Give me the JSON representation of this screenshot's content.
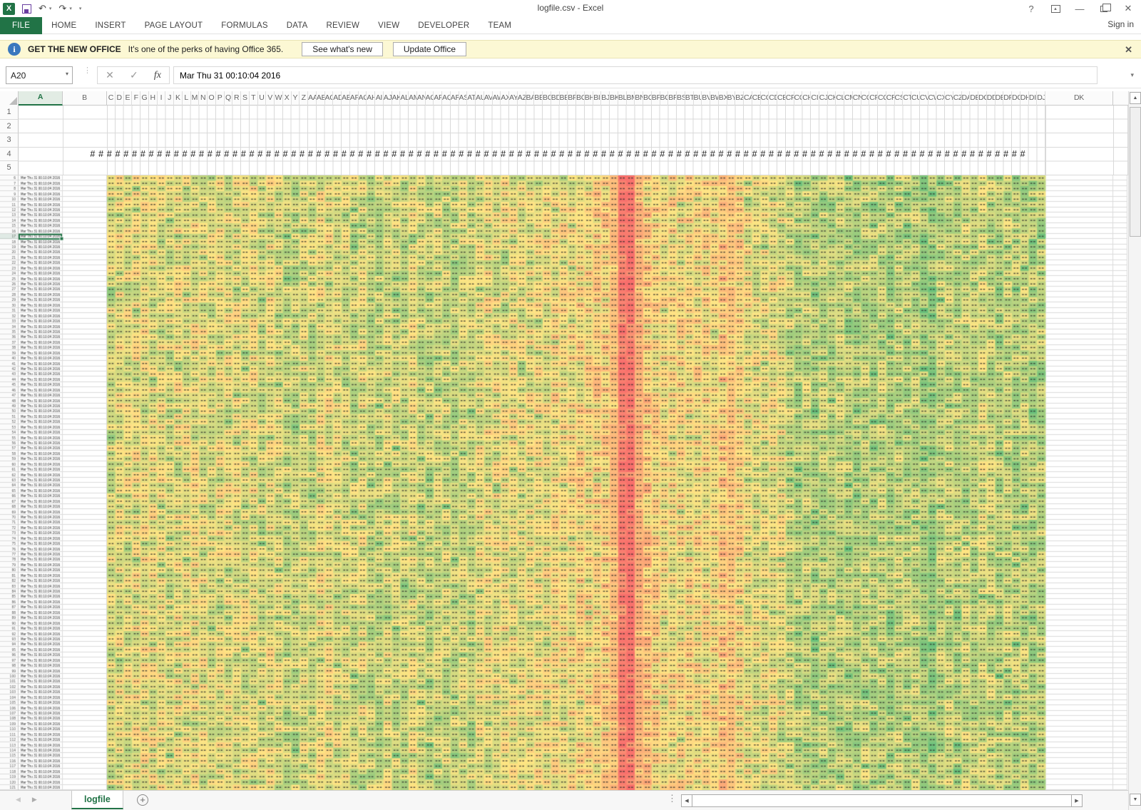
{
  "window": {
    "title": "logfile.csv - Excel",
    "sign_in": "Sign in"
  },
  "ribbon": {
    "active_tab": "FILE",
    "tabs": [
      "FILE",
      "HOME",
      "INSERT",
      "PAGE LAYOUT",
      "FORMULAS",
      "DATA",
      "REVIEW",
      "VIEW",
      "DEVELOPER",
      "TEAM"
    ]
  },
  "notification": {
    "title": "GET THE NEW OFFICE",
    "message": "It's one of the perks of having Office 365.",
    "buttons": [
      "See what's new",
      "Update Office"
    ]
  },
  "formula_bar": {
    "name_box": "A20",
    "fx_label": "fx",
    "value": "Mar Thu 31 00:10:04 2016"
  },
  "sheet": {
    "wide_col_headers": [
      "A",
      "B"
    ],
    "narrow_col_headers": [
      "C",
      "D",
      "E",
      "F",
      "G",
      "H",
      "I",
      "J",
      "K",
      "L",
      "M",
      "N",
      "O",
      "P",
      "Q",
      "R",
      "S",
      "T",
      "U",
      "V",
      "W",
      "X",
      "Y",
      "Z",
      "AA",
      "AB",
      "AC",
      "AD",
      "AE",
      "AF",
      "AG",
      "AH",
      "AI",
      "AJ",
      "AK",
      "AL",
      "AM",
      "AN",
      "AO",
      "AP",
      "AQ",
      "AR",
      "AS",
      "AT",
      "AU",
      "AV",
      "AW",
      "AX",
      "AY",
      "AZ",
      "BA",
      "BB",
      "BC",
      "BD",
      "BE",
      "BF",
      "BG",
      "BH",
      "BI",
      "BJ",
      "BK",
      "BL",
      "BM",
      "BN",
      "BO",
      "BP",
      "BQ",
      "BR",
      "BS",
      "BT",
      "BU",
      "BV",
      "BW",
      "BX",
      "BY",
      "BZ",
      "CA",
      "CB",
      "CC",
      "CD",
      "CE",
      "CF",
      "CG",
      "CH",
      "CI",
      "CJ",
      "CK",
      "CL",
      "CM",
      "CN",
      "CO",
      "CP",
      "CQ",
      "CR",
      "CS",
      "CT",
      "CU",
      "CV",
      "CW",
      "CX",
      "CY",
      "CZ",
      "DA",
      "DB",
      "DC",
      "DD",
      "DE",
      "DF",
      "DG",
      "DH",
      "DI",
      "DJ"
    ],
    "last_col_header": "DK",
    "visible_row_numbers": [
      "1",
      "2",
      "3",
      "4",
      "5"
    ],
    "overflow_marker": "#",
    "tiny_rows": {
      "count": 116,
      "start_number": 6,
      "col_a_text": "Mar Thu 31 00:10:04 2016"
    },
    "active_cell": {
      "ref": "A20",
      "tiny_row_index": 11
    }
  },
  "heatmap": {
    "columns": 112,
    "rows": 116,
    "palette": {
      "low": "#63BE7B",
      "mid": "#FFE583",
      "high": "#F8696B"
    },
    "seed": 20160331,
    "noise_default": 0.17,
    "noise_hot": 0.05,
    "column_means": [
      0.4,
      0.44,
      0.42,
      0.45,
      0.46,
      0.45,
      0.44,
      0.38,
      0.45,
      0.44,
      0.46,
      0.44,
      0.4,
      0.45,
      0.42,
      0.43,
      0.42,
      0.45,
      0.38,
      0.44,
      0.4,
      0.35,
      0.34,
      0.4,
      0.36,
      0.44,
      0.45,
      0.42,
      0.4,
      0.36,
      0.42,
      0.35,
      0.33,
      0.4,
      0.36,
      0.34,
      0.42,
      0.35,
      0.33,
      0.38,
      0.36,
      0.34,
      0.38,
      0.36,
      0.44,
      0.46,
      0.44,
      0.46,
      0.45,
      0.43,
      0.44,
      0.47,
      0.46,
      0.5,
      0.48,
      0.5,
      0.52,
      0.52,
      0.54,
      0.56,
      0.66,
      0.93,
      0.96,
      0.72,
      0.6,
      0.52,
      0.5,
      0.52,
      0.5,
      0.52,
      0.5,
      0.52,
      0.5,
      0.6,
      0.62,
      0.52,
      0.46,
      0.44,
      0.42,
      0.46,
      0.44,
      0.36,
      0.3,
      0.34,
      0.28,
      0.32,
      0.3,
      0.34,
      0.3,
      0.28,
      0.33,
      0.3,
      0.32,
      0.28,
      0.34,
      0.3,
      0.32,
      0.24,
      0.22,
      0.32,
      0.35,
      0.3,
      0.36,
      0.32,
      0.38,
      0.34,
      0.3,
      0.34,
      0.3,
      0.32,
      0.28,
      0.3
    ]
  },
  "bottom_bar": {
    "sheet_tab": "logfile"
  },
  "colors": {
    "excel_green": "#217346",
    "gridline": "#D9D9D9",
    "selection": "#217346"
  }
}
